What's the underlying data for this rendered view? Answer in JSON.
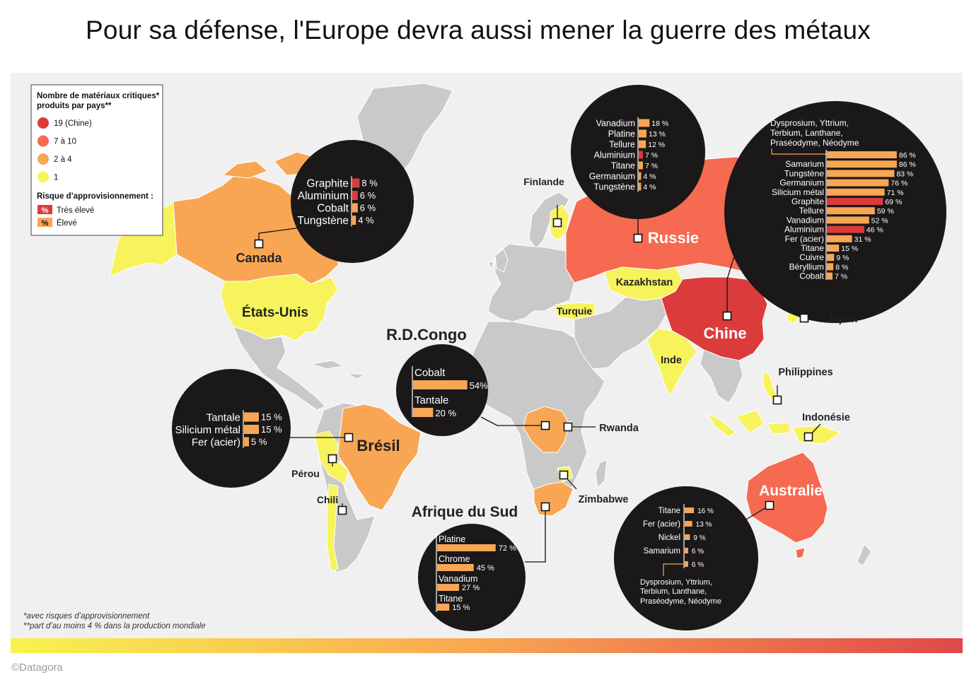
{
  "title": "Pour sa défense, l'Europe devra aussi mener la guerre des métaux",
  "credit": "©Datagora",
  "legend": {
    "heading_line1": "Nombre de matériaux critiques*",
    "heading_line2": "produits par pays**",
    "levels": [
      {
        "label": "19 (Chine)",
        "color": "#dc3b3b"
      },
      {
        "label": "7 à 10",
        "color": "#f56a50"
      },
      {
        "label": "2 à 4",
        "color": "#f8a653"
      },
      {
        "label": "1",
        "color": "#f7f35c"
      }
    ],
    "risk_heading": "Risque d’approvisionnement :",
    "risks": [
      {
        "symbol": "%",
        "label": "Très élevé",
        "color": "#dc3b3b"
      },
      {
        "symbol": "%",
        "label": "Élevé",
        "color": "#f8a653"
      }
    ]
  },
  "footnotes": [
    "*avec risques d’approvisionnement",
    "**part d’au moins 4 % dans la production mondiale"
  ],
  "colors": {
    "very_high": "#dc3b3b",
    "high": "#f8a653",
    "china": "#dc3b3b",
    "tier2": "#f56a50",
    "tier3": "#f8a653",
    "tier4": "#f7f35c",
    "land": "#c9c9c9",
    "sea": "#f0f0f0",
    "bubble": "#1b1819"
  },
  "countries": {
    "canada": "Canada",
    "usa": "États-Unis",
    "bresil": "Brésil",
    "perou": "Pérou",
    "chili": "Chili",
    "finlande": "Finlande",
    "russie": "Russie",
    "kazakhstan": "Kazakhstan",
    "turquie": "Turquie",
    "chine": "Chine",
    "japon": "Japon",
    "inde": "Inde",
    "philippines": "Philippines",
    "indonesie": "Indonésie",
    "rdcongo": "R.D.Congo",
    "rwanda": "Rwanda",
    "zimbabwe": "Zimbabwe",
    "afrique_sud": "Afrique du Sud",
    "australie": "Australie"
  },
  "bubbles": {
    "canada": [
      {
        "name": "Graphite",
        "pct": "8 %",
        "value": 8,
        "risk": "very_high"
      },
      {
        "name": "Aluminium",
        "pct": "6 %",
        "value": 6,
        "risk": "very_high"
      },
      {
        "name": "Cobalt",
        "pct": "6 %",
        "value": 6,
        "risk": "high"
      },
      {
        "name": "Tungstène",
        "pct": "4 %",
        "value": 4,
        "risk": "high"
      }
    ],
    "russie": [
      {
        "name": "Vanadium",
        "pct": "18 %",
        "value": 18,
        "risk": "high"
      },
      {
        "name": "Platine",
        "pct": "13 %",
        "value": 13,
        "risk": "high"
      },
      {
        "name": "Tellure",
        "pct": "12 %",
        "value": 12,
        "risk": "high"
      },
      {
        "name": "Aluminium",
        "pct": "7 %",
        "value": 7,
        "risk": "very_high"
      },
      {
        "name": "Titane",
        "pct": "7 %",
        "value": 7,
        "risk": "high"
      },
      {
        "name": "Germanium",
        "pct": "4 %",
        "value": 4,
        "risk": "high"
      },
      {
        "name": "Tungstène",
        "pct": "4 %",
        "value": 4,
        "risk": "high"
      }
    ],
    "chine_group_line1": "Dysprosium, Yttrium,",
    "chine_group_line2": "Terbium, Lanthane,",
    "chine_group_line3": "Praséodyme, Néodyme",
    "chine": [
      {
        "name": "",
        "pct": "86 %",
        "value": 86,
        "risk": "high"
      },
      {
        "name": "Samarium",
        "pct": "86 %",
        "value": 86,
        "risk": "high"
      },
      {
        "name": "Tungstène",
        "pct": "83 %",
        "value": 83,
        "risk": "high"
      },
      {
        "name": "Germanium",
        "pct": "76 %",
        "value": 76,
        "risk": "high"
      },
      {
        "name": "Silicium métal",
        "pct": "71 %",
        "value": 71,
        "risk": "high"
      },
      {
        "name": "Graphite",
        "pct": "69 %",
        "value": 69,
        "risk": "very_high"
      },
      {
        "name": "Tellure",
        "pct": "59 %",
        "value": 59,
        "risk": "high"
      },
      {
        "name": "Vanadium",
        "pct": "52 %",
        "value": 52,
        "risk": "high"
      },
      {
        "name": "Aluminium",
        "pct": "46 %",
        "value": 46,
        "risk": "very_high"
      },
      {
        "name": "Fer (acier)",
        "pct": "31 %",
        "value": 31,
        "risk": "high"
      },
      {
        "name": "Titane",
        "pct": "15 %",
        "value": 15,
        "risk": "high"
      },
      {
        "name": "Cuivre",
        "pct": "9 %",
        "value": 9,
        "risk": "high"
      },
      {
        "name": "Béryllium",
        "pct": "8 %",
        "value": 8,
        "risk": "high"
      },
      {
        "name": "Cobalt",
        "pct": "7 %",
        "value": 7,
        "risk": "high"
      }
    ],
    "rdcongo": [
      {
        "name": "Cobalt",
        "pct": "54%",
        "value": 54,
        "risk": "high"
      },
      {
        "name": "Tantale",
        "pct": "20 %",
        "value": 20,
        "risk": "high"
      }
    ],
    "bresil": [
      {
        "name": "Tantale",
        "pct": "15 %",
        "value": 15,
        "risk": "high"
      },
      {
        "name": "Silicium métal",
        "pct": "15 %",
        "value": 15,
        "risk": "high"
      },
      {
        "name": "Fer (acier)",
        "pct": "5 %",
        "value": 5,
        "risk": "high"
      }
    ],
    "afrique_sud": [
      {
        "name": "Platine",
        "pct": "72 %",
        "value": 72,
        "risk": "high"
      },
      {
        "name": "Chrome",
        "pct": "45 %",
        "value": 45,
        "risk": "high"
      },
      {
        "name": "Vanadium",
        "pct": "27 %",
        "value": 27,
        "risk": "high"
      },
      {
        "name": "Titane",
        "pct": "15 %",
        "value": 15,
        "risk": "high"
      }
    ],
    "australie": [
      {
        "name": "Titane",
        "pct": "16 %",
        "value": 16,
        "risk": "high"
      },
      {
        "name": "Fer (acier)",
        "pct": "13 %",
        "value": 13,
        "risk": "high"
      },
      {
        "name": "Nickel",
        "pct": "9 %",
        "value": 9,
        "risk": "high"
      },
      {
        "name": "Samarium",
        "pct": "6 %",
        "value": 6,
        "risk": "high"
      },
      {
        "name": "",
        "pct": "6 %",
        "value": 6,
        "risk": "high"
      }
    ],
    "australie_group_line1": "Dysprosium, Yttrium,",
    "australie_group_line2": "Terbium, Lanthane,",
    "australie_group_line3": "Praséodyme, Néodyme"
  }
}
